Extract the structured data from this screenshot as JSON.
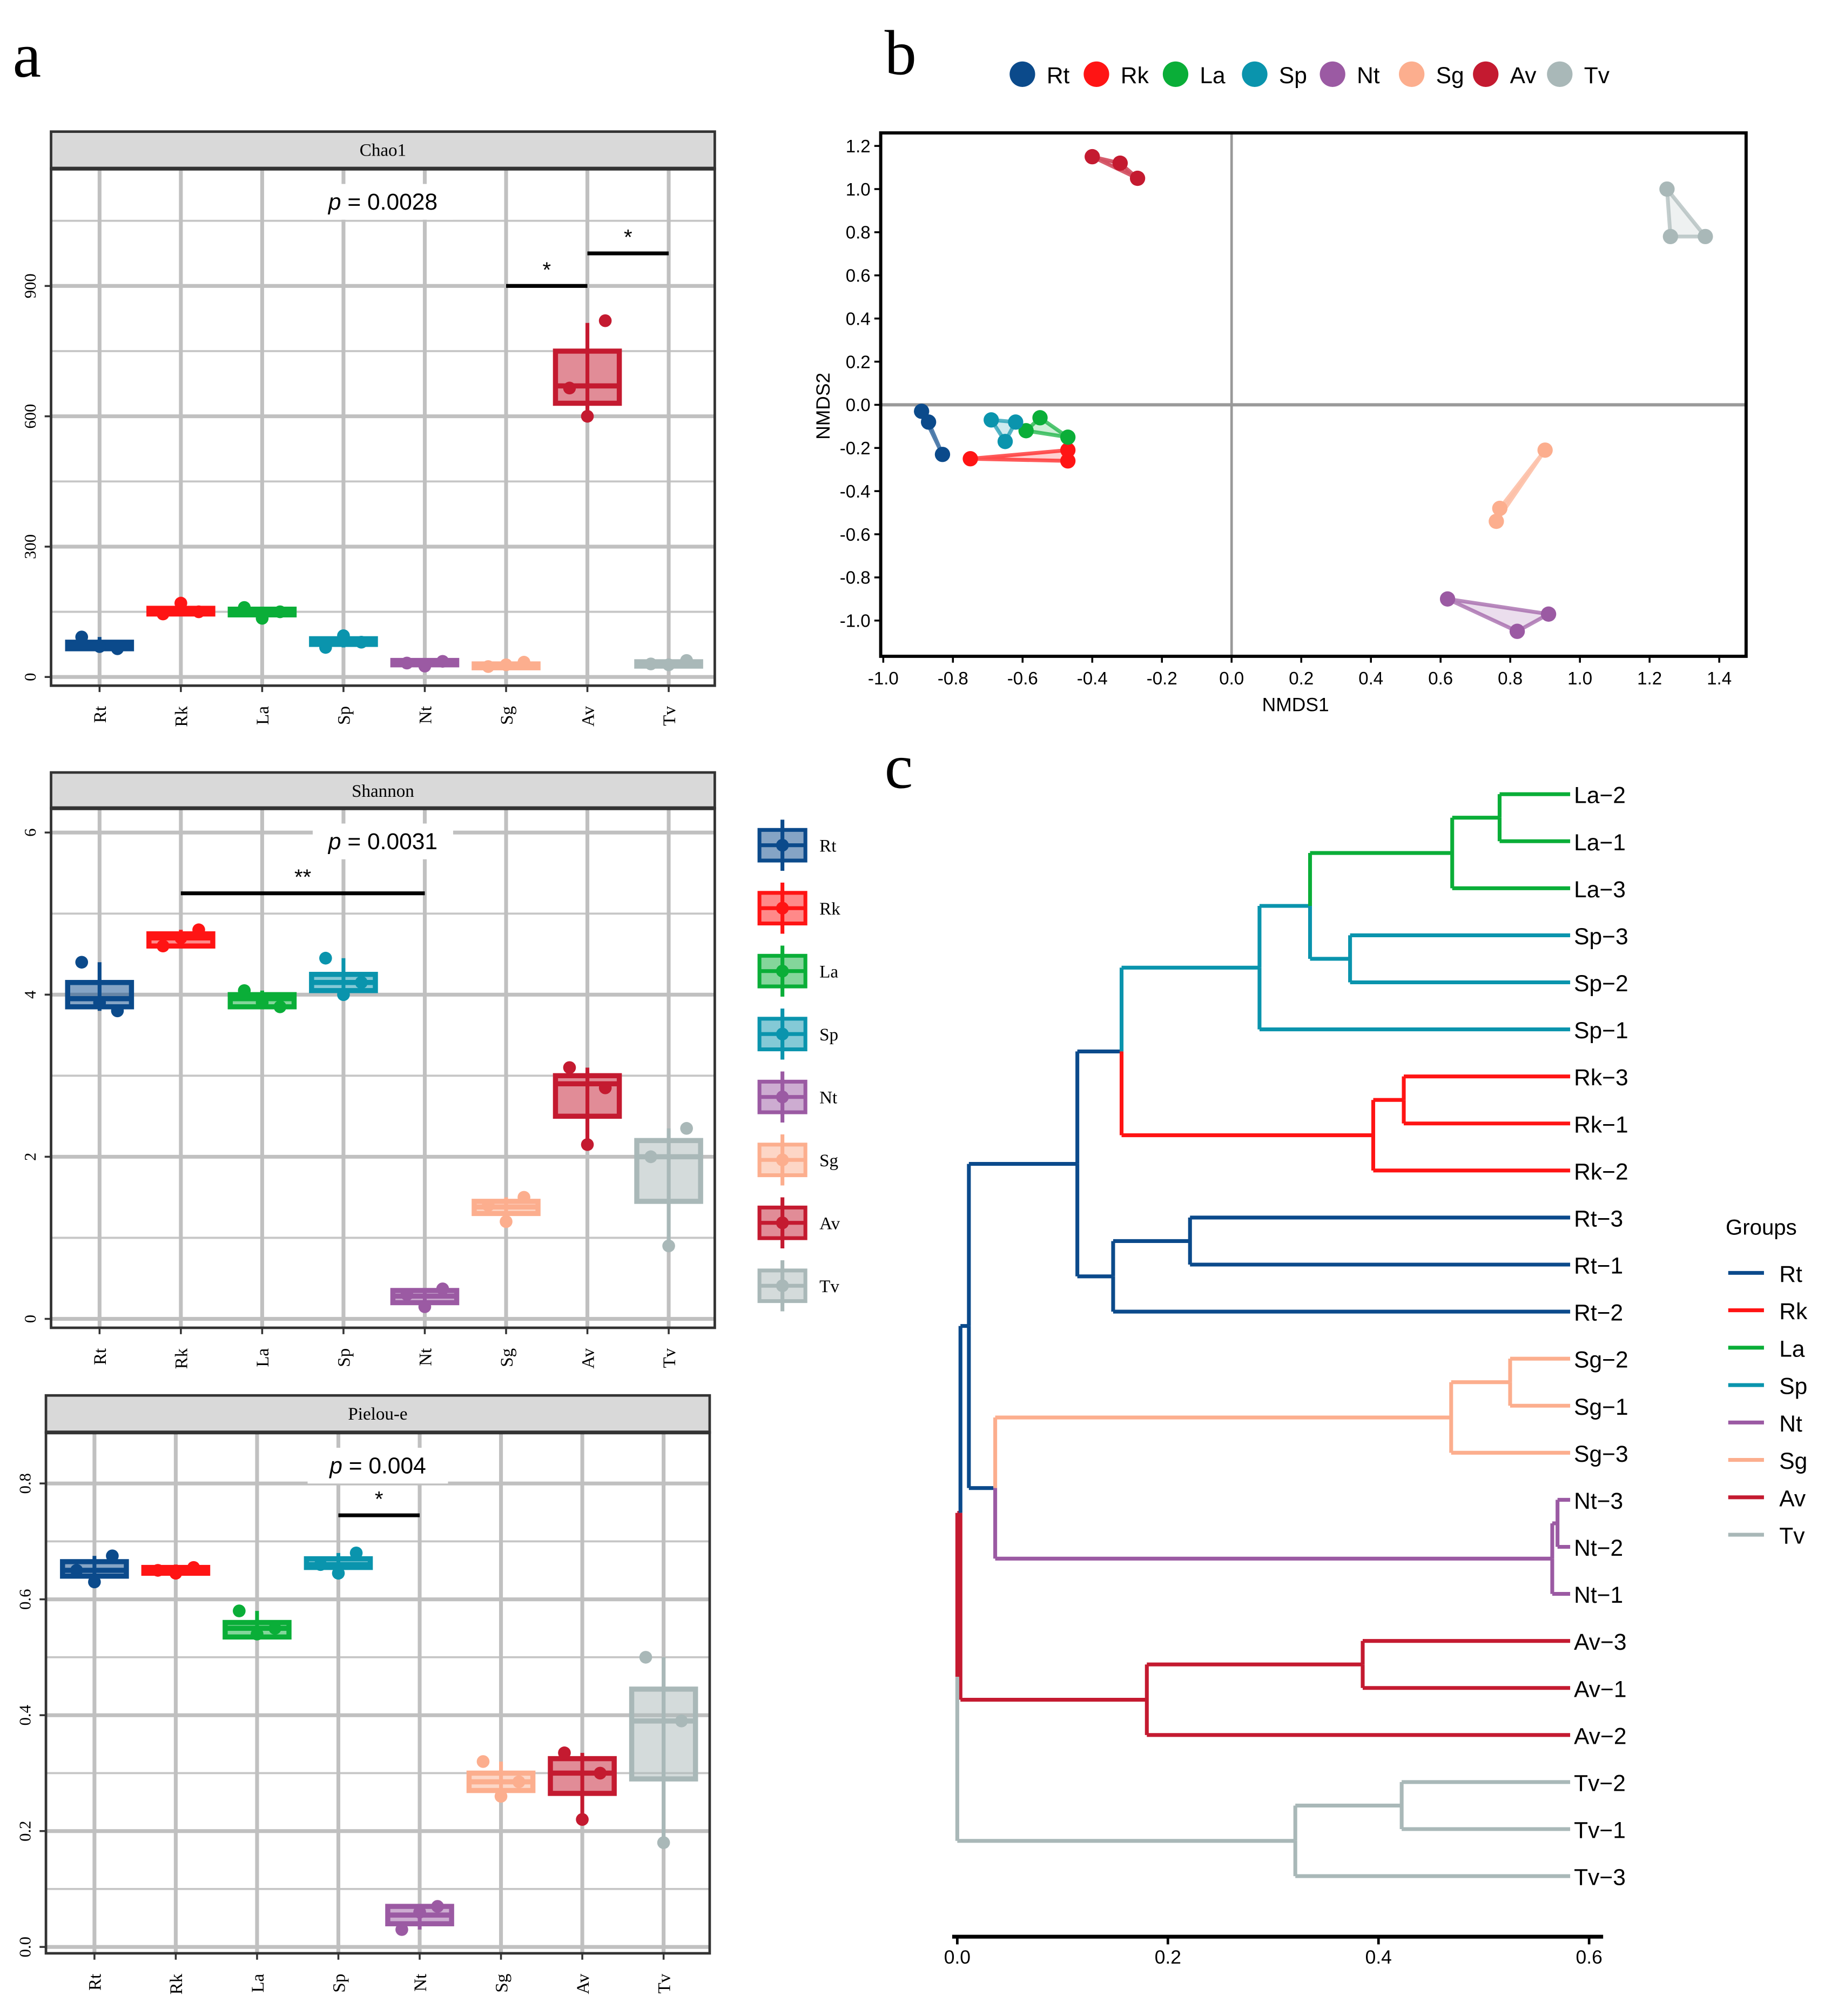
{
  "panel_letters": {
    "a": "a",
    "b": "b",
    "c": "c"
  },
  "groups": [
    "Rt",
    "Rk",
    "La",
    "Sp",
    "Nt",
    "Sg",
    "Av",
    "Tv"
  ],
  "colors": {
    "Rt": "#0b4a8b",
    "Rk": "#ff1414",
    "La": "#0aae38",
    "Sp": "#0a94ad",
    "Nt": "#9b5aa3",
    "Sg": "#fcae8e",
    "Av": "#c41a30",
    "Tv": "#a9b8b8"
  },
  "chart_data": [
    {
      "type": "box",
      "title": "Chao1",
      "p_prefix": "p",
      "p_value": "= 0.0028",
      "ylim": [
        -20,
        1170
      ],
      "yticks": [
        0,
        300,
        600,
        900
      ],
      "ytick_labels": [
        "0",
        "300",
        "600",
        "900"
      ],
      "minor": [
        150,
        450,
        750,
        1050
      ],
      "boxes": [
        {
          "g": "Rt",
          "q1": 65,
          "med": 72,
          "q3": 80,
          "lo": 62,
          "hi": 92,
          "pts": [
            92,
            70,
            65
          ]
        },
        {
          "g": "Rk",
          "q1": 145,
          "med": 150,
          "q3": 158,
          "lo": 145,
          "hi": 170,
          "pts": [
            145,
            170,
            150
          ]
        },
        {
          "g": "La",
          "q1": 143,
          "med": 150,
          "q3": 156,
          "lo": 135,
          "hi": 160,
          "pts": [
            160,
            135,
            150
          ]
        },
        {
          "g": "Sp",
          "q1": 75,
          "med": 80,
          "q3": 88,
          "lo": 68,
          "hi": 95,
          "pts": [
            68,
            95,
            80
          ]
        },
        {
          "g": "Nt",
          "q1": 28,
          "med": 32,
          "q3": 38,
          "lo": 25,
          "hi": 38,
          "pts": [
            32,
            25,
            36
          ]
        },
        {
          "g": "Sg",
          "q1": 22,
          "med": 26,
          "q3": 30,
          "lo": 22,
          "hi": 34,
          "pts": [
            24,
            28,
            34
          ]
        },
        {
          "g": "Av",
          "q1": 630,
          "med": 670,
          "q3": 750,
          "lo": 595,
          "hi": 815,
          "pts": [
            665,
            600,
            820
          ]
        },
        {
          "g": "Tv",
          "q1": 25,
          "med": 30,
          "q3": 35,
          "lo": 25,
          "hi": 38,
          "pts": [
            30,
            28,
            38
          ]
        }
      ],
      "sig": [
        {
          "from": "Sg",
          "to": "Av",
          "y": 900,
          "label": "*"
        },
        {
          "from": "Av",
          "to": "Tv",
          "y": 975,
          "label": "*"
        }
      ]
    },
    {
      "type": "box",
      "title": "Shannon",
      "p_prefix": "p",
      "p_value": "= 0.0031",
      "ylim": [
        -0.11,
        6.3
      ],
      "yticks": [
        0,
        2,
        4,
        6
      ],
      "ytick_labels": [
        "0",
        "2",
        "4",
        "6"
      ],
      "minor": [
        1,
        3,
        5
      ],
      "boxes": [
        {
          "g": "Rt",
          "q1": 3.85,
          "med": 3.95,
          "q3": 4.15,
          "lo": 3.8,
          "hi": 4.4,
          "pts": [
            4.4,
            3.9,
            3.8
          ]
        },
        {
          "g": "Rk",
          "q1": 4.6,
          "med": 4.7,
          "q3": 4.75,
          "lo": 4.58,
          "hi": 4.8,
          "pts": [
            4.6,
            4.7,
            4.8
          ]
        },
        {
          "g": "La",
          "q1": 3.85,
          "med": 3.95,
          "q3": 4.0,
          "lo": 3.85,
          "hi": 4.05,
          "pts": [
            4.05,
            3.9,
            3.85
          ]
        },
        {
          "g": "Sp",
          "q1": 4.05,
          "med": 4.15,
          "q3": 4.25,
          "lo": 4.0,
          "hi": 4.45,
          "pts": [
            4.45,
            4.0,
            4.15
          ]
        },
        {
          "g": "Nt",
          "q1": 0.2,
          "med": 0.28,
          "q3": 0.35,
          "lo": 0.15,
          "hi": 0.37,
          "pts": [
            0.3,
            0.15,
            0.37
          ]
        },
        {
          "g": "Sg",
          "q1": 1.3,
          "med": 1.38,
          "q3": 1.45,
          "lo": 1.2,
          "hi": 1.5,
          "pts": [
            1.4,
            1.2,
            1.5
          ]
        },
        {
          "g": "Av",
          "q1": 2.5,
          "med": 2.9,
          "q3": 3.0,
          "lo": 2.15,
          "hi": 3.1,
          "pts": [
            3.1,
            2.15,
            2.85
          ]
        },
        {
          "g": "Tv",
          "q1": 1.45,
          "med": 2.0,
          "q3": 2.2,
          "lo": 0.9,
          "hi": 2.35,
          "pts": [
            2.0,
            0.9,
            2.35
          ]
        }
      ],
      "sig": [
        {
          "from": "Rk",
          "to": "Nt",
          "y": 5.25,
          "label": "**"
        }
      ]
    },
    {
      "type": "box",
      "title": "Pielou-e",
      "p_prefix": "p",
      "p_value": "= 0.004",
      "ylim": [
        -0.011,
        0.888
      ],
      "yticks": [
        0,
        0.2,
        0.4,
        0.6,
        0.8
      ],
      "ytick_labels": [
        "0.0",
        "0.2",
        "0.4",
        "0.6",
        "0.8"
      ],
      "minor": [
        0.1,
        0.3,
        0.5,
        0.7
      ],
      "boxes": [
        {
          "g": "Rt",
          "q1": 0.64,
          "med": 0.65,
          "q3": 0.665,
          "lo": 0.63,
          "hi": 0.675,
          "pts": [
            0.65,
            0.63,
            0.675
          ]
        },
        {
          "g": "Rk",
          "q1": 0.645,
          "med": 0.65,
          "q3": 0.655,
          "lo": 0.64,
          "hi": 0.66,
          "pts": [
            0.65,
            0.645,
            0.655
          ]
        },
        {
          "g": "La",
          "q1": 0.535,
          "med": 0.55,
          "q3": 0.56,
          "lo": 0.535,
          "hi": 0.58,
          "pts": [
            0.58,
            0.54,
            0.55
          ]
        },
        {
          "g": "Sp",
          "q1": 0.655,
          "med": 0.66,
          "q3": 0.67,
          "lo": 0.645,
          "hi": 0.68,
          "pts": [
            0.66,
            0.645,
            0.68
          ]
        },
        {
          "g": "Nt",
          "q1": 0.04,
          "med": 0.055,
          "q3": 0.07,
          "lo": 0.03,
          "hi": 0.072,
          "pts": [
            0.03,
            0.06,
            0.07
          ]
        },
        {
          "g": "Sg",
          "q1": 0.27,
          "med": 0.285,
          "q3": 0.3,
          "lo": 0.26,
          "hi": 0.32,
          "pts": [
            0.32,
            0.26,
            0.285
          ]
        },
        {
          "g": "Av",
          "q1": 0.265,
          "med": 0.3,
          "q3": 0.325,
          "lo": 0.225,
          "hi": 0.335,
          "pts": [
            0.335,
            0.22,
            0.3
          ]
        },
        {
          "g": "Tv",
          "q1": 0.29,
          "med": 0.39,
          "q3": 0.445,
          "lo": 0.18,
          "hi": 0.5,
          "pts": [
            0.5,
            0.18,
            0.39
          ]
        }
      ],
      "sig": [
        {
          "from": "Sp",
          "to": "Nt",
          "y": 0.745,
          "label": "*"
        }
      ]
    },
    {
      "type": "scatter",
      "xlabel": "NMDS1",
      "ylabel": "NMDS2",
      "xlim": [
        -1.01,
        1.48
      ],
      "ylim": [
        -1.17,
        1.27
      ],
      "xticks": [
        -1.0,
        -0.8,
        -0.6,
        -0.4,
        -0.2,
        0.0,
        0.2,
        0.4,
        0.6,
        0.8,
        1.0,
        1.2,
        1.4
      ],
      "xtick_labels": [
        "-1.0",
        "-0.8",
        "-0.6",
        "-0.4",
        "-0.2",
        "0.0",
        "0.2",
        "0.4",
        "0.6",
        "0.8",
        "1.0",
        "1.2",
        "1.4"
      ],
      "yticks": [
        -1.0,
        -0.8,
        -0.6,
        -0.4,
        -0.2,
        0.0,
        0.2,
        0.4,
        0.6,
        0.8,
        1.0,
        1.2
      ],
      "ytick_labels": [
        "-1.0",
        "-0.8",
        "-0.6",
        "-0.4",
        "-0.2",
        "0.0",
        "0.2",
        "0.4",
        "0.6",
        "0.8",
        "1.0",
        "1.2"
      ],
      "legend_position": "top",
      "series": [
        {
          "g": "Rt",
          "points": [
            [
              -0.89,
              -0.03
            ],
            [
              -0.87,
              -0.08
            ],
            [
              -0.83,
              -0.23
            ]
          ]
        },
        {
          "g": "Rk",
          "points": [
            [
              -0.75,
              -0.25
            ],
            [
              -0.47,
              -0.21
            ],
            [
              -0.47,
              -0.26
            ]
          ]
        },
        {
          "g": "La",
          "points": [
            [
              -0.55,
              -0.06
            ],
            [
              -0.59,
              -0.12
            ],
            [
              -0.47,
              -0.15
            ]
          ]
        },
        {
          "g": "Sp",
          "points": [
            [
              -0.69,
              -0.07
            ],
            [
              -0.62,
              -0.08
            ],
            [
              -0.65,
              -0.17
            ]
          ]
        },
        {
          "g": "Nt",
          "points": [
            [
              0.62,
              -0.9
            ],
            [
              0.91,
              -0.97
            ],
            [
              0.82,
              -1.05
            ]
          ]
        },
        {
          "g": "Sg",
          "points": [
            [
              0.9,
              -0.21
            ],
            [
              0.77,
              -0.48
            ],
            [
              0.76,
              -0.54
            ]
          ]
        },
        {
          "g": "Av",
          "points": [
            [
              -0.4,
              1.15
            ],
            [
              -0.32,
              1.12
            ],
            [
              -0.27,
              1.05
            ]
          ]
        },
        {
          "g": "Tv",
          "points": [
            [
              1.25,
              1.0
            ],
            [
              1.26,
              0.78
            ],
            [
              1.36,
              0.78
            ]
          ]
        }
      ]
    },
    {
      "type": "dendrogram",
      "legend_title": "Groups",
      "xticks": [
        0.0,
        0.2,
        0.4,
        0.6
      ],
      "xtick_labels": [
        "0.0",
        "0.2",
        "0.4",
        "0.6"
      ],
      "xlim": [
        0,
        0.6
      ],
      "leaf_height": 0.582,
      "tree": {
        "h": 0.0,
        "c": [
          {
            "h": 0.003,
            "c": [
              {
                "h": 0.011,
                "c": [
                  {
                    "h": 0.114,
                    "c": [
                      {
                        "h": 0.156,
                        "c": [
                          {
                            "h": 0.287,
                            "c": [
                              {
                                "h": 0.335,
                                "c": [
                                  {
                                    "h": 0.47,
                                    "c": [
                                      {
                                        "h": 0.515,
                                        "c": [
                                          {
                                            "leaf": "La−2"
                                          },
                                          {
                                            "leaf": "La−1"
                                          }
                                        ]
                                      },
                                      {
                                        "leaf": "La−3"
                                      }
                                    ]
                                  },
                                  {
                                    "h": 0.373,
                                    "c": [
                                      {
                                        "leaf": "Sp−3"
                                      },
                                      {
                                        "leaf": "Sp−2"
                                      }
                                    ]
                                  }
                                ],
                                "g": "Sp"
                              },
                              {
                                "leaf": "Sp−1"
                              }
                            ],
                            "g": "Sp"
                          },
                          {
                            "h": 0.395,
                            "c": [
                              {
                                "h": 0.424,
                                "c": [
                                  {
                                    "leaf": "Rk−3"
                                  },
                                  {
                                    "leaf": "Rk−1"
                                  }
                                ]
                              },
                              {
                                "leaf": "Rk−2"
                              }
                            ]
                          }
                        ],
                        "g": "Rt"
                      },
                      {
                        "h": 0.148,
                        "c": [
                          {
                            "h": 0.221,
                            "c": [
                              {
                                "leaf": "Rt−3"
                              },
                              {
                                "leaf": "Rt−1"
                              }
                            ]
                          },
                          {
                            "leaf": "Rt−2"
                          }
                        ]
                      }
                    ],
                    "g": "Rt"
                  },
                  {
                    "h": 0.036,
                    "c": [
                      {
                        "h": 0.469,
                        "c": [
                          {
                            "h": 0.525,
                            "c": [
                              {
                                "leaf": "Sg−2"
                              },
                              {
                                "leaf": "Sg−1"
                              }
                            ]
                          },
                          {
                            "leaf": "Sg−3"
                          }
                        ]
                      },
                      {
                        "h": 0.565,
                        "c": [
                          {
                            "h": 0.57,
                            "c": [
                              {
                                "leaf": "Nt−3"
                              },
                              {
                                "leaf": "Nt−2"
                              }
                            ]
                          },
                          {
                            "leaf": "Nt−1"
                          }
                        ]
                      }
                    ],
                    "g": "Rt"
                  }
                ],
                "g": "Rt"
              },
              {
                "h": 0.18,
                "c": [
                  {
                    "h": 0.385,
                    "c": [
                      {
                        "leaf": "Av−3"
                      },
                      {
                        "leaf": "Av−1"
                      }
                    ]
                  },
                  {
                    "leaf": "Av−2"
                  }
                ]
              }
            ],
            "g": "Av"
          },
          {
            "h": 0.321,
            "c": [
              {
                "h": 0.422,
                "c": [
                  {
                    "leaf": "Tv−2"
                  },
                  {
                    "leaf": "Tv−1"
                  }
                ]
              },
              {
                "leaf": "Tv−3"
              }
            ]
          }
        ],
        "g": "Tv"
      }
    }
  ]
}
